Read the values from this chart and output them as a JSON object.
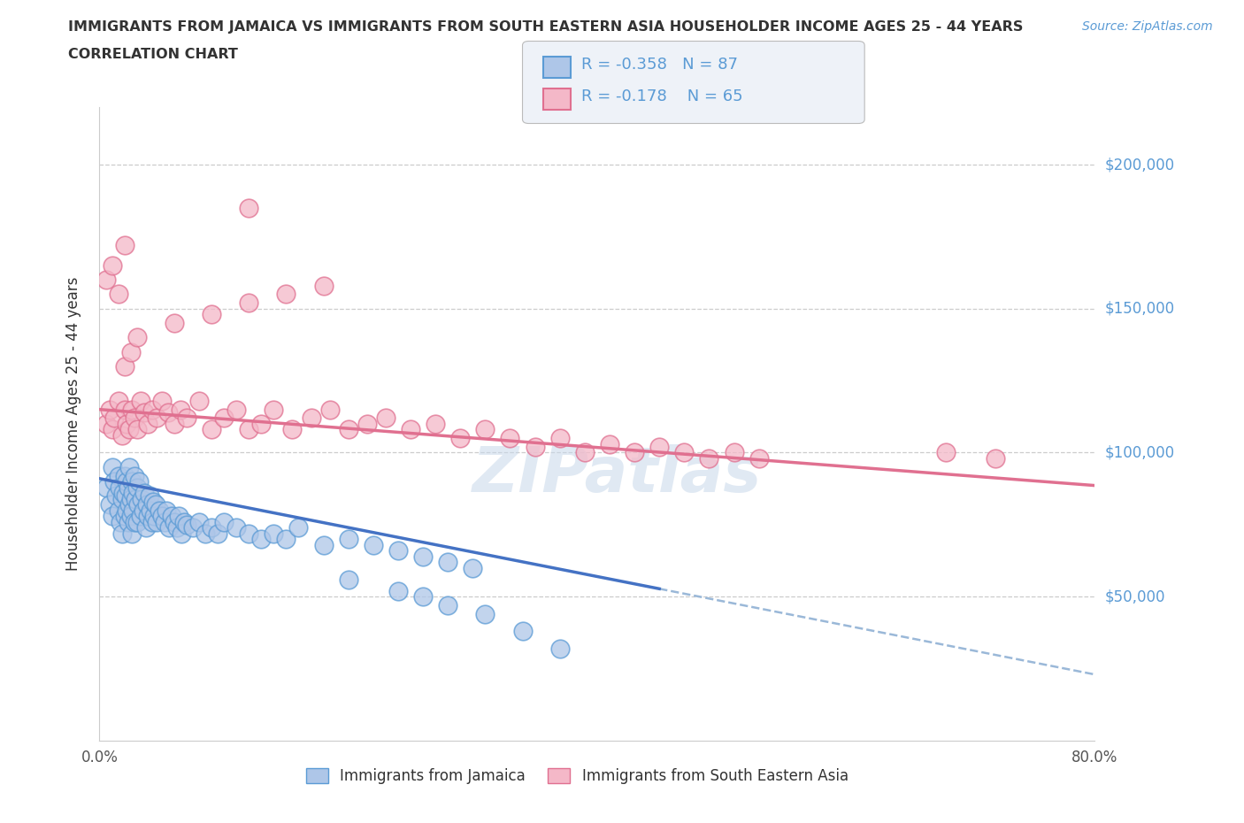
{
  "title_line1": "IMMIGRANTS FROM JAMAICA VS IMMIGRANTS FROM SOUTH EASTERN ASIA HOUSEHOLDER INCOME AGES 25 - 44 YEARS",
  "title_line2": "CORRELATION CHART",
  "source_text": "Source: ZipAtlas.com",
  "ylabel": "Householder Income Ages 25 - 44 years",
  "xlim": [
    0.0,
    0.8
  ],
  "ylim": [
    0,
    220000
  ],
  "color_jamaica": "#aec6e8",
  "color_jamaica_edge": "#5b9bd5",
  "color_sea": "#f4b8c8",
  "color_sea_edge": "#e07090",
  "color_jamaica_line": "#4472c4",
  "color_sea_line": "#e07090",
  "color_dashed": "#9ab8d8",
  "R_jamaica": -0.358,
  "N_jamaica": 87,
  "R_sea": -0.178,
  "N_sea": 65,
  "watermark": "ZIPatlas",
  "legend_labels": [
    "Immigrants from Jamaica",
    "Immigrants from South Eastern Asia"
  ],
  "jamaica_x": [
    0.005,
    0.008,
    0.01,
    0.01,
    0.012,
    0.013,
    0.015,
    0.015,
    0.016,
    0.017,
    0.018,
    0.018,
    0.019,
    0.02,
    0.02,
    0.021,
    0.022,
    0.022,
    0.023,
    0.023,
    0.024,
    0.024,
    0.025,
    0.025,
    0.026,
    0.026,
    0.027,
    0.027,
    0.028,
    0.028,
    0.029,
    0.03,
    0.03,
    0.031,
    0.032,
    0.033,
    0.034,
    0.035,
    0.036,
    0.037,
    0.038,
    0.039,
    0.04,
    0.041,
    0.042,
    0.043,
    0.044,
    0.045,
    0.046,
    0.048,
    0.05,
    0.052,
    0.054,
    0.056,
    0.058,
    0.06,
    0.062,
    0.064,
    0.066,
    0.068,
    0.07,
    0.075,
    0.08,
    0.085,
    0.09,
    0.095,
    0.1,
    0.11,
    0.12,
    0.13,
    0.14,
    0.15,
    0.16,
    0.18,
    0.2,
    0.22,
    0.24,
    0.26,
    0.28,
    0.3,
    0.2,
    0.24,
    0.26,
    0.28,
    0.31,
    0.34,
    0.37
  ],
  "jamaica_y": [
    88000,
    82000,
    95000,
    78000,
    90000,
    85000,
    92000,
    80000,
    88000,
    76000,
    84000,
    72000,
    86000,
    92000,
    78000,
    85000,
    80000,
    90000,
    76000,
    88000,
    82000,
    95000,
    84000,
    78000,
    90000,
    72000,
    86000,
    80000,
    92000,
    76000,
    84000,
    88000,
    76000,
    82000,
    90000,
    78000,
    84000,
    80000,
    86000,
    74000,
    82000,
    78000,
    85000,
    80000,
    76000,
    83000,
    78000,
    82000,
    76000,
    80000,
    78000,
    76000,
    80000,
    74000,
    78000,
    76000,
    74000,
    78000,
    72000,
    76000,
    75000,
    74000,
    76000,
    72000,
    74000,
    72000,
    76000,
    74000,
    72000,
    70000,
    72000,
    70000,
    74000,
    68000,
    70000,
    68000,
    66000,
    64000,
    62000,
    60000,
    56000,
    52000,
    50000,
    47000,
    44000,
    38000,
    32000
  ],
  "sea_x": [
    0.005,
    0.008,
    0.01,
    0.012,
    0.015,
    0.018,
    0.02,
    0.022,
    0.024,
    0.026,
    0.028,
    0.03,
    0.033,
    0.036,
    0.039,
    0.042,
    0.046,
    0.05,
    0.055,
    0.06,
    0.065,
    0.07,
    0.08,
    0.09,
    0.1,
    0.11,
    0.12,
    0.13,
    0.14,
    0.155,
    0.17,
    0.185,
    0.2,
    0.215,
    0.23,
    0.25,
    0.27,
    0.29,
    0.31,
    0.33,
    0.35,
    0.37,
    0.39,
    0.41,
    0.43,
    0.45,
    0.47,
    0.49,
    0.51,
    0.53,
    0.02,
    0.025,
    0.03,
    0.06,
    0.09,
    0.12,
    0.15,
    0.18,
    0.68,
    0.72,
    0.005,
    0.01,
    0.015,
    0.02,
    0.12
  ],
  "sea_y": [
    110000,
    115000,
    108000,
    112000,
    118000,
    106000,
    115000,
    110000,
    108000,
    115000,
    112000,
    108000,
    118000,
    114000,
    110000,
    115000,
    112000,
    118000,
    114000,
    110000,
    115000,
    112000,
    118000,
    108000,
    112000,
    115000,
    108000,
    110000,
    115000,
    108000,
    112000,
    115000,
    108000,
    110000,
    112000,
    108000,
    110000,
    105000,
    108000,
    105000,
    102000,
    105000,
    100000,
    103000,
    100000,
    102000,
    100000,
    98000,
    100000,
    98000,
    130000,
    135000,
    140000,
    145000,
    148000,
    152000,
    155000,
    158000,
    100000,
    98000,
    160000,
    165000,
    155000,
    172000,
    185000
  ]
}
